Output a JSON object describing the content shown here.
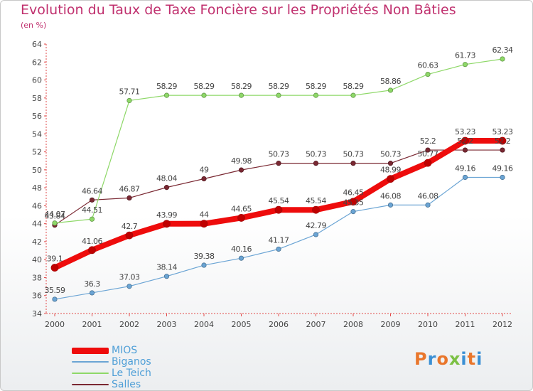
{
  "header": {
    "title": "Evolution du Taux de Taxe Foncière sur les Propriétés Non Bâties",
    "subtitle": "(en %)"
  },
  "logo": {
    "text": "Proxiti",
    "colors": [
      "#e9762b",
      "#3a8fd4",
      "#e9762b",
      "#7bc043",
      "#3a8fd4",
      "#e9762b",
      "#3a8fd4"
    ]
  },
  "chart_data": {
    "type": "line",
    "title": "Evolution du Taux de Taxe Foncière sur les Propriétés Non Bâties",
    "ylabel": "(en %)",
    "xlabel": "",
    "x": [
      "2000",
      "2001",
      "2002",
      "2003",
      "2004",
      "2005",
      "2006",
      "2007",
      "2008",
      "2009",
      "2010",
      "2011",
      "2012"
    ],
    "ylim": [
      34,
      64
    ],
    "yticks": [
      34,
      36,
      38,
      40,
      42,
      44,
      46,
      48,
      50,
      52,
      54,
      56,
      58,
      60,
      62,
      64
    ],
    "grid": false,
    "legend_position": "bottom-left",
    "series": [
      {
        "name": "Salles",
        "color": "#7a2832",
        "width": 1.2,
        "values": [
          43.84,
          46.64,
          46.87,
          48.04,
          49,
          49.98,
          50.73,
          50.73,
          50.73,
          50.73,
          52.2,
          52.2,
          52.2
        ],
        "labels": [
          "43.84",
          "46.64",
          "46.87",
          "48.04",
          "49",
          "49.98",
          "50.73",
          "50.73",
          "50.73",
          "50.73",
          "52.2",
          "52.2",
          "52.2"
        ]
      },
      {
        "name": "Le Teich",
        "color": "#8ed868",
        "width": 1.2,
        "values": [
          44.07,
          44.51,
          57.71,
          58.29,
          58.29,
          58.29,
          58.29,
          58.29,
          58.29,
          58.86,
          60.63,
          61.73,
          62.34
        ],
        "labels": [
          "44.07",
          "44.51",
          "57.71",
          "58.29",
          "58.29",
          "58.29",
          "58.29",
          "58.29",
          "58.29",
          "58.86",
          "60.63",
          "61.73",
          "62.34"
        ]
      },
      {
        "name": "Biganos",
        "color": "#6aa4d4",
        "width": 1.2,
        "values": [
          35.59,
          36.3,
          37.03,
          38.14,
          39.38,
          40.16,
          41.17,
          42.79,
          45.35,
          46.08,
          46.08,
          49.16,
          49.16
        ],
        "labels": [
          "35.59",
          "36.3",
          "37.03",
          "38.14",
          "39.38",
          "40.16",
          "41.17",
          "42.79",
          "45.35",
          "46.08",
          "46.08",
          "49.16",
          "49.16"
        ]
      },
      {
        "name": "MIOS",
        "color": "#ee0c0c",
        "width": 8,
        "values": [
          39.1,
          41.06,
          42.7,
          43.99,
          44,
          44.65,
          45.54,
          45.54,
          46.45,
          48.99,
          50.77,
          53.23,
          53.23
        ],
        "labels": [
          "39.1",
          "41.06",
          "42.7",
          "43.99",
          "44",
          "44.65",
          "45.54",
          "45.54",
          "46.45",
          "48.99",
          "50.77",
          "53.23",
          "53.23"
        ]
      }
    ],
    "legend": [
      "MIOS",
      "Biganos",
      "Le Teich",
      "Salles"
    ]
  }
}
